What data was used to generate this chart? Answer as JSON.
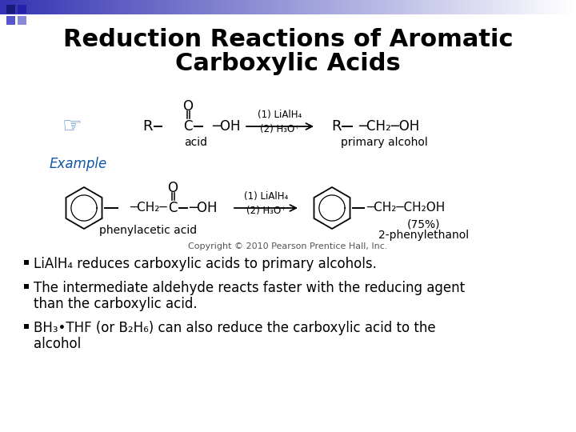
{
  "title_line1": "Reduction Reactions of Aromatic",
  "title_line2": "Carboxylic Acids",
  "title_fontsize": 22,
  "title_color": "#000000",
  "bg_color": "#ffffff",
  "bullet_points": [
    "LiAlH₄ reduces carboxylic acids to primary alcohols.",
    "The intermediate aldehyde reacts faster with the reducing agent\nthan the carboxylic acid.",
    "BH₃•THF (or B₂H₆) can also reduce the carboxylic acid to the\nalcohol"
  ],
  "bullet_fontsize": 12,
  "example_label": "Example",
  "copyright": "Copyright © 2010 Pearson Prentice Hall, Inc.",
  "accent_color": "#4466bb"
}
